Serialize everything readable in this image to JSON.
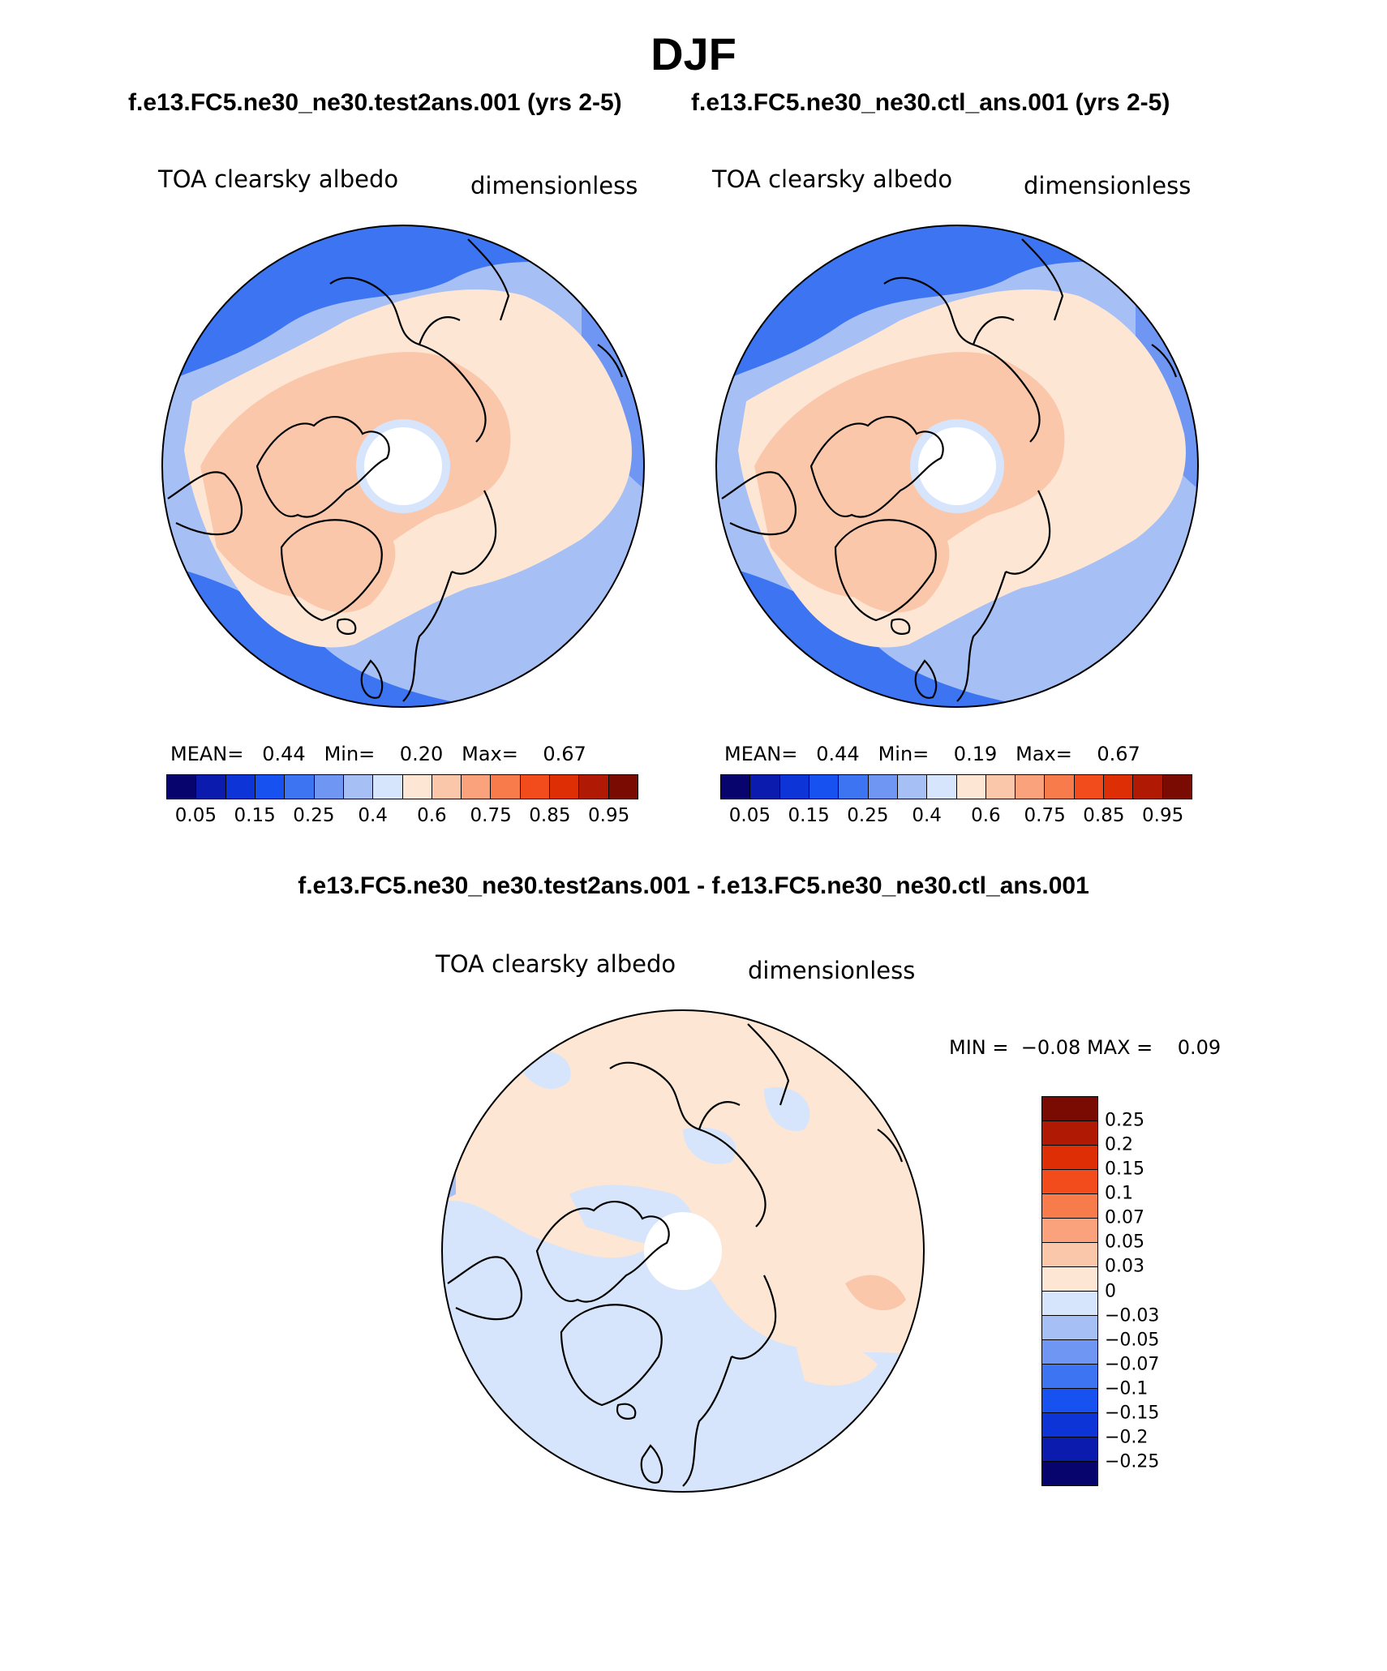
{
  "season_title": "DJF",
  "panels": [
    {
      "case_title": "f.e13.FC5.ne30_ne30.test2ans.001 (yrs 2-5)",
      "variable": "TOA clearsky albedo",
      "units": "dimensionless",
      "stats": {
        "mean_label": "MEAN=",
        "mean": "0.44",
        "min_label": "Min=",
        "min": "0.20",
        "max_label": "Max=",
        "max": "0.67"
      }
    },
    {
      "case_title": "f.e13.FC5.ne30_ne30.ctl_ans.001 (yrs 2-5)",
      "variable": "TOA clearsky albedo",
      "units": "dimensionless",
      "stats": {
        "mean_label": "MEAN=",
        "mean": "0.44",
        "min_label": "Min=",
        "min": "0.19",
        "max_label": "Max=",
        "max": "0.67"
      }
    }
  ],
  "colorbar": {
    "colors": [
      "#08046e",
      "#0a1bad",
      "#0d34d6",
      "#1752f0",
      "#3d74f2",
      "#6e96f2",
      "#a6c0f5",
      "#d6e5fb",
      "#fde6d4",
      "#fbc7ab",
      "#f9a27c",
      "#f77b4b",
      "#f24b1c",
      "#dd2e06",
      "#b01a04",
      "#7a0b03"
    ],
    "labels": [
      "0.05",
      "0.15",
      "0.25",
      "0.4",
      "0.6",
      "0.75",
      "0.85",
      "0.95"
    ]
  },
  "diff": {
    "title": "f.e13.FC5.ne30_ne30.test2ans.001 - f.e13.FC5.ne30_ne30.ctl_ans.001",
    "variable": "TOA clearsky albedo",
    "units": "dimensionless",
    "stats": {
      "min_label": "MIN =",
      "min": "−0.08",
      "max_label": "MAX =",
      "max": "0.09"
    },
    "colorbar": {
      "colors": [
        "#7a0b03",
        "#b01a04",
        "#dd2e06",
        "#f24b1c",
        "#f77b4b",
        "#f9a27c",
        "#fbc7ab",
        "#fde6d4",
        "#d6e5fb",
        "#a6c0f5",
        "#6e96f2",
        "#3d74f2",
        "#1752f0",
        "#0d34d6",
        "#0a1bad",
        "#08046e"
      ],
      "labels": [
        "0.25",
        "0.2",
        "0.15",
        "0.1",
        "0.07",
        "0.05",
        "0.03",
        "0",
        "−0.03",
        "−0.05",
        "−0.07",
        "−0.1",
        "−0.15",
        "−0.2",
        "−0.25"
      ]
    }
  }
}
